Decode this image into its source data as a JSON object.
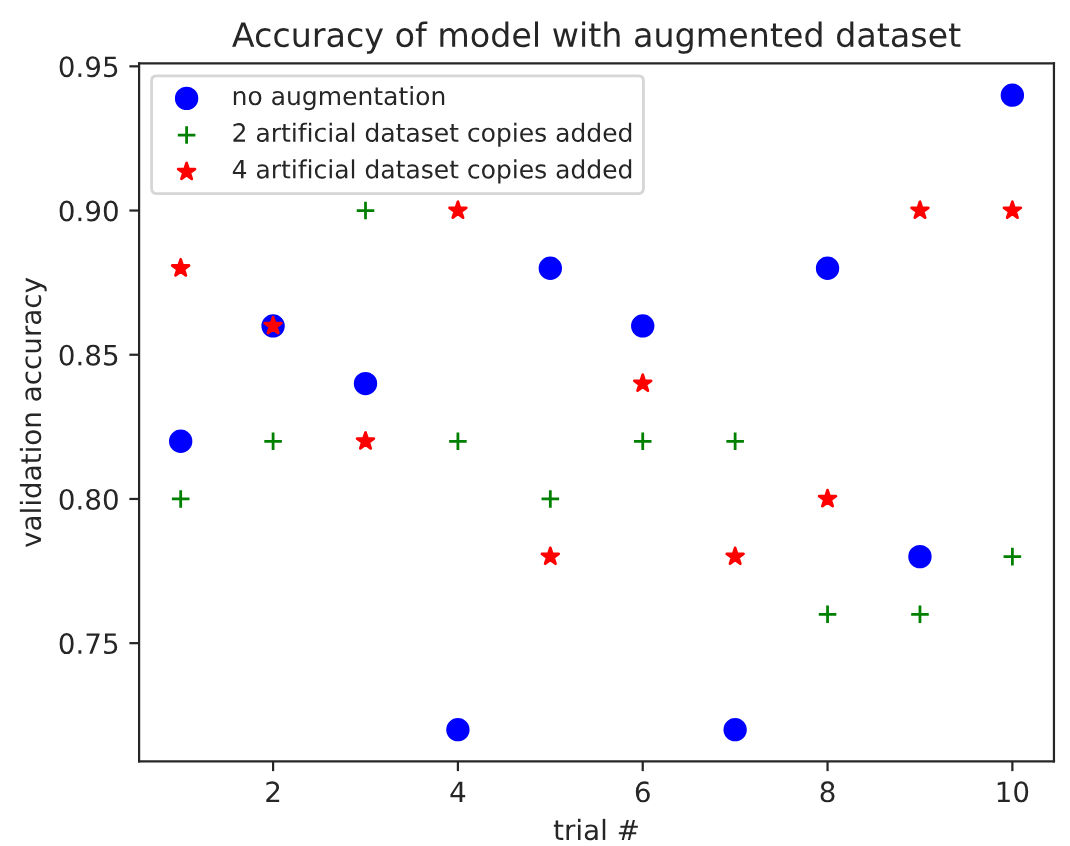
{
  "chart_data": {
    "type": "scatter",
    "title": "Accuracy of model with augmented dataset",
    "xlabel": "trial #",
    "ylabel": "validation accuracy",
    "x": [
      1,
      2,
      3,
      4,
      5,
      6,
      7,
      8,
      9,
      10
    ],
    "series": [
      {
        "name": "no augmentation",
        "color": "#0000ff",
        "marker": "circle",
        "values": [
          0.82,
          0.86,
          0.84,
          0.72,
          0.88,
          0.86,
          0.72,
          0.88,
          0.78,
          0.94
        ]
      },
      {
        "name": "2 artificial dataset copies added",
        "color": "#008000",
        "marker": "cross",
        "values": [
          0.8,
          0.82,
          0.9,
          0.82,
          0.8,
          0.82,
          0.82,
          0.76,
          0.76,
          0.78
        ]
      },
      {
        "name": "4 artificial dataset copies added",
        "color": "#ff0000",
        "marker": "star",
        "values": [
          0.88,
          0.86,
          0.82,
          0.9,
          0.78,
          0.84,
          0.78,
          0.8,
          0.9,
          0.9
        ]
      }
    ],
    "xlim": [
      0.55,
      10.45
    ],
    "xticks": [
      2,
      4,
      6,
      8,
      10
    ],
    "ylim": [
      0.709,
      0.951
    ],
    "yticks": [
      0.75,
      {
        "value": 0.8,
        "label": "0.80"
      },
      0.85,
      {
        "value": 0.9,
        "label": "0.90"
      },
      0.95
    ],
    "grid": false,
    "legend": "top left"
  }
}
